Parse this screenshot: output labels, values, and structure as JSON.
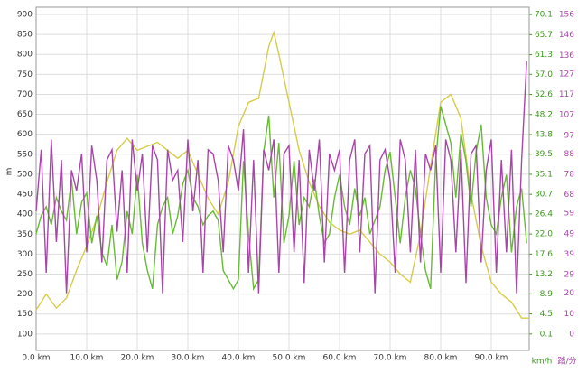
{
  "chart_data": {
    "type": "line",
    "ylabel": "m",
    "y2label": "km/h",
    "y3label": "踏/分",
    "xlim": [
      0,
      97.5
    ],
    "xticks": [
      {
        "value": 0,
        "label": "0.0 km"
      },
      {
        "value": 10,
        "label": "10.0 km"
      },
      {
        "value": 20,
        "label": "20.0 km"
      },
      {
        "value": 30,
        "label": "30.0 km"
      },
      {
        "value": 40,
        "label": "40.0 km"
      },
      {
        "value": 50,
        "label": "50.0 km"
      },
      {
        "value": 60,
        "label": "60.0 km"
      },
      {
        "value": 70,
        "label": "70.0 km"
      },
      {
        "value": 80,
        "label": "80.0 km"
      },
      {
        "value": 90,
        "label": "90.0 km"
      }
    ],
    "ylim": [
      59,
      918
    ],
    "yticks": [
      100,
      150,
      200,
      250,
      300,
      350,
      400,
      450,
      500,
      550,
      600,
      650,
      700,
      750,
      800,
      850,
      900
    ],
    "y2lim": [
      -3.5,
      71.7
    ],
    "y2ticks": [
      0.1,
      4.5,
      8.9,
      13.2,
      17.6,
      {
        "value": 22,
        "label": "22.0"
      },
      26.4,
      30.7,
      35.1,
      39.5,
      43.8,
      48.2,
      52.6,
      {
        "value": 57,
        "label": "57.0"
      },
      61.3,
      65.7,
      70.1
    ],
    "y3lim": [
      -7.9,
      159.5
    ],
    "y3ticks": [
      0,
      10,
      20,
      29,
      39,
      49,
      59,
      68,
      78,
      88,
      97,
      107,
      117,
      127,
      136,
      146,
      156
    ],
    "grid": true,
    "series": [
      {
        "color": "#d6cc48",
        "axis": "y",
        "x": [
          0,
          2,
          4,
          6,
          8,
          10,
          12,
          14,
          16,
          18,
          20,
          22,
          24,
          26,
          28,
          30,
          32,
          34,
          36,
          38,
          40,
          42,
          44,
          46,
          47,
          48,
          50,
          52,
          54,
          56,
          58,
          60,
          62,
          64,
          66,
          68,
          70,
          72,
          74,
          76,
          78,
          80,
          82,
          84,
          86,
          88,
          90,
          92,
          94,
          96,
          97.5
        ],
        "values": [
          160,
          200,
          165,
          190,
          260,
          320,
          390,
          480,
          560,
          590,
          560,
          570,
          580,
          560,
          540,
          560,
          500,
          440,
          400,
          480,
          620,
          680,
          690,
          820,
          855,
          800,
          680,
          560,
          480,
          420,
          380,
          360,
          350,
          360,
          330,
          300,
          280,
          250,
          230,
          350,
          520,
          680,
          700,
          640,
          450,
          320,
          230,
          200,
          180,
          140,
          140
        ]
      },
      {
        "color": "#66bb33",
        "axis": "y2",
        "x": [
          0,
          1,
          2,
          3,
          4,
          5,
          6,
          7,
          8,
          9,
          10,
          11,
          12,
          13,
          14,
          15,
          16,
          17,
          18,
          19,
          20,
          21,
          22,
          23,
          24,
          25,
          26,
          27,
          28,
          29,
          30,
          31,
          32,
          33,
          34,
          35,
          36,
          37,
          38,
          39,
          40,
          41,
          42,
          43,
          44,
          45,
          46,
          47,
          48,
          49,
          50,
          51,
          52,
          53,
          54,
          55,
          56,
          57,
          58,
          59,
          60,
          61,
          62,
          63,
          64,
          65,
          66,
          67,
          68,
          69,
          70,
          71,
          72,
          73,
          74,
          75,
          76,
          77,
          78,
          79,
          80,
          81,
          82,
          83,
          84,
          85,
          86,
          87,
          88,
          89,
          90,
          91,
          92,
          93,
          94,
          95,
          96,
          97
        ],
        "values": [
          22,
          26,
          28,
          24,
          30,
          27,
          25,
          34,
          22,
          29,
          31,
          20,
          26,
          18,
          15,
          24,
          12,
          16,
          27,
          22,
          35,
          20,
          14,
          10,
          24,
          28,
          30,
          22,
          26,
          33,
          36,
          30,
          28,
          24,
          26,
          27,
          25,
          14,
          12,
          10,
          12,
          38,
          22,
          10,
          12,
          40,
          48,
          30,
          42,
          20,
          26,
          38,
          24,
          30,
          28,
          34,
          26,
          20,
          22,
          30,
          35,
          28,
          24,
          32,
          26,
          30,
          22,
          25,
          28,
          36,
          40,
          30,
          20,
          30,
          36,
          32,
          22,
          14,
          10,
          38,
          50,
          46,
          42,
          30,
          44,
          38,
          28,
          40,
          46,
          30,
          24,
          22,
          30,
          35,
          18,
          28,
          32,
          20
        ]
      },
      {
        "color": "#a845a8",
        "axis": "y3",
        "x": [
          0,
          1,
          2,
          3,
          4,
          5,
          6,
          7,
          8,
          9,
          10,
          11,
          12,
          13,
          14,
          15,
          16,
          17,
          18,
          19,
          20,
          21,
          22,
          23,
          24,
          25,
          26,
          27,
          28,
          29,
          30,
          31,
          32,
          33,
          34,
          35,
          36,
          37,
          38,
          39,
          40,
          41,
          42,
          43,
          44,
          45,
          46,
          47,
          48,
          49,
          50,
          51,
          52,
          53,
          54,
          55,
          56,
          57,
          58,
          59,
          60,
          61,
          62,
          63,
          64,
          65,
          66,
          67,
          68,
          69,
          70,
          71,
          72,
          73,
          74,
          75,
          76,
          77,
          78,
          79,
          80,
          81,
          82,
          83,
          84,
          85,
          86,
          87,
          88,
          89,
          90,
          91,
          92,
          93,
          94,
          95,
          96,
          97
        ],
        "values": [
          60,
          90,
          30,
          95,
          45,
          85,
          20,
          80,
          70,
          88,
          40,
          92,
          75,
          35,
          85,
          90,
          50,
          80,
          30,
          95,
          70,
          88,
          40,
          92,
          85,
          20,
          90,
          75,
          80,
          45,
          95,
          60,
          85,
          30,
          90,
          88,
          75,
          40,
          92,
          85,
          70,
          100,
          30,
          85,
          20,
          90,
          80,
          95,
          30,
          88,
          92,
          40,
          85,
          25,
          90,
          70,
          95,
          35,
          88,
          80,
          90,
          30,
          85,
          95,
          40,
          88,
          92,
          20,
          85,
          90,
          75,
          30,
          95,
          85,
          40,
          90,
          35,
          88,
          80,
          92,
          30,
          95,
          85,
          40,
          90,
          25,
          88,
          92,
          35,
          80,
          95,
          30,
          85,
          40,
          90,
          20,
          85,
          133
        ]
      }
    ]
  }
}
